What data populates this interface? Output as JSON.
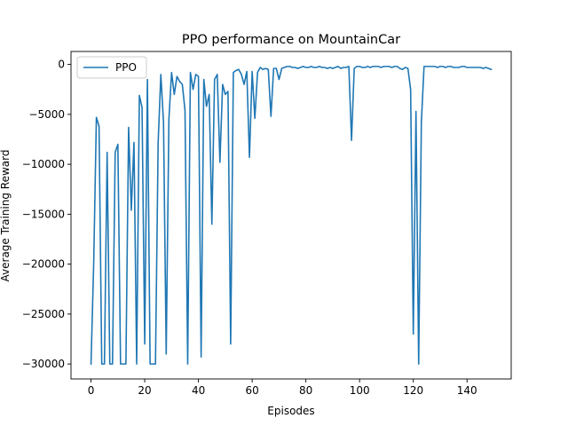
{
  "chart_data": {
    "type": "line",
    "title": "PPO performance on MountainCar",
    "xlabel": "Episodes",
    "ylabel": "Average Training Reward",
    "xlim": [
      -7.45,
      156.45
    ],
    "ylim": [
      -31500,
      1300
    ],
    "xticks": [
      0,
      20,
      40,
      60,
      80,
      100,
      120,
      140
    ],
    "yticks": [
      0,
      -5000,
      -10000,
      -15000,
      -20000,
      -25000,
      -30000
    ],
    "ytick_labels": [
      "0",
      "−5000",
      "−10000",
      "−15000",
      "−20000",
      "−25000",
      "−30000"
    ],
    "grid": false,
    "legend": {
      "position": "upper-left"
    },
    "series": [
      {
        "name": "PPO",
        "color": "#1f77b4",
        "x": [
          0,
          1,
          2,
          3,
          4,
          5,
          6,
          7,
          8,
          9,
          10,
          11,
          12,
          13,
          14,
          15,
          16,
          17,
          18,
          19,
          20,
          21,
          22,
          23,
          24,
          25,
          26,
          27,
          28,
          29,
          30,
          31,
          32,
          33,
          34,
          35,
          36,
          37,
          38,
          39,
          40,
          41,
          42,
          43,
          44,
          45,
          46,
          47,
          48,
          49,
          50,
          51,
          52,
          53,
          54,
          55,
          56,
          57,
          58,
          59,
          60,
          61,
          62,
          63,
          64,
          65,
          66,
          67,
          68,
          69,
          70,
          71,
          72,
          73,
          74,
          75,
          76,
          77,
          78,
          79,
          80,
          81,
          82,
          83,
          84,
          85,
          86,
          87,
          88,
          89,
          90,
          91,
          92,
          93,
          94,
          95,
          96,
          97,
          98,
          99,
          100,
          101,
          102,
          103,
          104,
          105,
          106,
          107,
          108,
          109,
          110,
          111,
          112,
          113,
          114,
          115,
          116,
          117,
          118,
          119,
          120,
          121,
          122,
          123,
          124,
          125,
          126,
          127,
          128,
          129,
          130,
          131,
          132,
          133,
          134,
          135,
          136,
          137,
          138,
          139,
          140,
          141,
          142,
          143,
          144,
          145,
          146,
          147,
          148,
          149
        ],
        "y": [
          -30000,
          -20000,
          -5300,
          -6200,
          -30000,
          -30000,
          -8800,
          -30000,
          -30000,
          -8800,
          -8000,
          -30000,
          -30000,
          -30000,
          -6300,
          -14600,
          -7800,
          -30000,
          -3100,
          -4300,
          -28000,
          -1500,
          -30000,
          -30000,
          -30000,
          -7800,
          -1000,
          -5800,
          -29000,
          -5500,
          -800,
          -3000,
          -1200,
          -1700,
          -2000,
          -4600,
          -30000,
          -800,
          -2500,
          -1000,
          -1200,
          -29300,
          -1500,
          -4200,
          -3000,
          -16000,
          -1500,
          -1000,
          -9800,
          -2000,
          -3000,
          -2700,
          -28000,
          -800,
          -600,
          -500,
          -1000,
          -2000,
          -700,
          -9300,
          -700,
          -5400,
          -800,
          -300,
          -500,
          -400,
          -500,
          -5200,
          -400,
          -400,
          -1500,
          -400,
          -300,
          -200,
          -200,
          -300,
          -300,
          -400,
          -300,
          -200,
          -300,
          -300,
          -200,
          -300,
          -300,
          -200,
          -300,
          -300,
          -400,
          -300,
          -400,
          -300,
          -200,
          -400,
          -300,
          -300,
          -200,
          -7600,
          -400,
          -200,
          -200,
          -300,
          -300,
          -200,
          -300,
          -200,
          -200,
          -200,
          -300,
          -200,
          -200,
          -200,
          -300,
          -200,
          -200,
          -400,
          -500,
          -300,
          -400,
          -2500,
          -27000,
          -4700,
          -30000,
          -5800,
          -200,
          -200,
          -200,
          -200,
          -200,
          -300,
          -200,
          -200,
          -300,
          -200,
          -200,
          -300,
          -300,
          -300,
          -200,
          -200,
          -300,
          -300,
          -300,
          -300,
          -300,
          -300,
          -400,
          -300,
          -400,
          -500
        ]
      }
    ]
  }
}
